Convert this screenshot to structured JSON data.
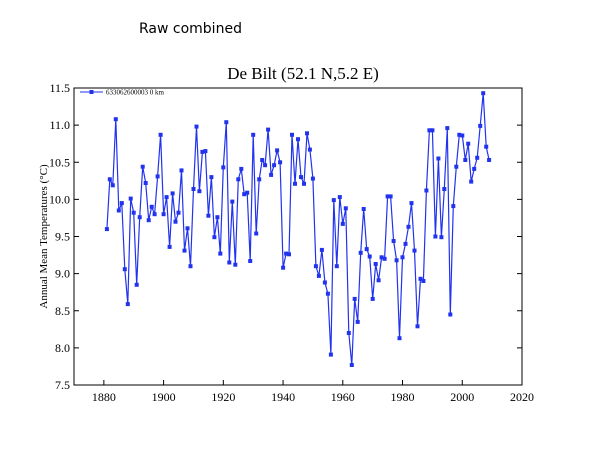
{
  "caption": "Raw combined",
  "chart_data": {
    "type": "line",
    "title": "De Bilt (52.1 N,5.2 E)",
    "xlabel": "",
    "ylabel": "Annual Mean Temperatures (°C)",
    "xlim": [
      1870,
      2020
    ],
    "ylim": [
      7.5,
      11.5
    ],
    "x_ticks": [
      1880,
      1900,
      1920,
      1940,
      1960,
      1980,
      2000,
      2020
    ],
    "y_ticks": [
      7.5,
      8.0,
      8.5,
      9.0,
      9.5,
      10.0,
      10.5,
      11.0,
      11.5
    ],
    "grid": false,
    "legend_position": "top-left",
    "color": "#2233ee",
    "series": [
      {
        "name": "633062600003  0 km",
        "x": [
          1881,
          1882,
          1883,
          1884,
          1885,
          1886,
          1887,
          1888,
          1889,
          1890,
          1891,
          1892,
          1893,
          1894,
          1895,
          1896,
          1897,
          1898,
          1899,
          1900,
          1901,
          1902,
          1903,
          1904,
          1905,
          1906,
          1907,
          1908,
          1909,
          1910,
          1911,
          1912,
          1913,
          1914,
          1915,
          1916,
          1917,
          1918,
          1919,
          1920,
          1921,
          1922,
          1923,
          1924,
          1925,
          1926,
          1927,
          1928,
          1929,
          1930,
          1931,
          1932,
          1933,
          1934,
          1935,
          1936,
          1937,
          1938,
          1939,
          1940,
          1941,
          1942,
          1943,
          1944,
          1945,
          1946,
          1947,
          1948,
          1949,
          1950,
          1951,
          1952,
          1953,
          1954,
          1955,
          1956,
          1957,
          1958,
          1959,
          1960,
          1961,
          1962,
          1963,
          1964,
          1965,
          1966,
          1967,
          1968,
          1969,
          1970,
          1971,
          1972,
          1973,
          1974,
          1975,
          1976,
          1977,
          1978,
          1979,
          1980,
          1981,
          1982,
          1983,
          1984,
          1985,
          1986,
          1987,
          1988,
          1989,
          1990,
          1991,
          1992,
          1993,
          1994,
          1995,
          1996,
          1997,
          1998,
          1999,
          2000,
          2001,
          2002,
          2003,
          2004,
          2005,
          2006,
          2007,
          2008,
          2009
        ],
        "y": [
          9.6,
          10.27,
          10.19,
          11.08,
          9.85,
          9.95,
          9.06,
          8.59,
          10.01,
          9.82,
          8.85,
          9.76,
          10.44,
          10.22,
          9.72,
          9.9,
          9.8,
          10.31,
          10.87,
          9.8,
          10.03,
          9.36,
          10.08,
          9.7,
          9.82,
          10.39,
          9.31,
          9.61,
          9.1,
          10.14,
          10.98,
          10.11,
          10.64,
          10.65,
          9.78,
          10.3,
          9.49,
          9.76,
          9.27,
          10.43,
          11.04,
          9.15,
          9.97,
          9.12,
          10.27,
          10.41,
          10.07,
          10.09,
          9.17,
          10.87,
          9.54,
          10.27,
          10.53,
          10.46,
          10.94,
          10.33,
          10.46,
          10.66,
          10.5,
          9.08,
          9.27,
          9.26,
          10.87,
          10.21,
          10.81,
          10.3,
          10.21,
          10.89,
          10.67,
          10.28,
          9.1,
          8.97,
          9.32,
          8.88,
          8.73,
          7.91,
          9.99,
          9.1,
          10.03,
          9.67,
          9.88,
          8.2,
          7.77,
          8.66,
          8.35,
          9.28,
          9.87,
          9.33,
          9.23,
          8.66,
          9.13,
          8.91,
          9.22,
          9.2,
          10.04,
          10.04,
          9.44,
          9.18,
          8.13,
          9.22,
          9.4,
          9.63,
          9.95,
          9.31,
          8.29,
          8.93,
          8.9,
          10.12,
          10.93,
          10.93,
          9.5,
          10.55,
          9.49,
          10.14,
          10.96,
          8.45,
          9.91,
          10.44,
          10.87,
          10.86,
          10.53,
          10.75,
          10.24,
          10.41,
          10.56,
          10.99,
          11.43,
          10.71,
          10.53
        ]
      }
    ]
  }
}
